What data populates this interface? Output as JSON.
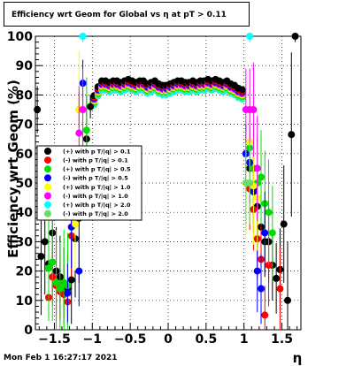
{
  "title": "Efficiency wrt Geom for Global vs   η at pT > 0.11",
  "timestamp": "Mon Feb  1 16:27:17 2021",
  "chart_data": {
    "type": "scatter",
    "title": "Efficiency wrt Geom for Global vs   η at pT > 0.11",
    "xlabel": "η",
    "ylabel": "Efficiency wrt Geom (%)",
    "xlim": [
      -1.75,
      1.75
    ],
    "ylim": [
      0,
      100
    ],
    "x_ticks": [
      -1.5,
      -1,
      -0.5,
      0,
      0.5,
      1,
      1.5
    ],
    "x_tick_labels": [
      "−1.5",
      "−1",
      "−0.5",
      "0",
      "0.5",
      "1",
      "1.5"
    ],
    "y_ticks": [
      0,
      10,
      20,
      30,
      40,
      50,
      60,
      70,
      80,
      90,
      100
    ],
    "y_tick_labels": [
      "0",
      "10",
      "20",
      "30",
      "40",
      "50",
      "60",
      "70",
      "80",
      "90",
      "100"
    ],
    "grid": true,
    "legend_position": "middle-left",
    "series": [
      {
        "name": "(+) with p T/|q| > 0.1",
        "color": "#000000",
        "points": [
          [
            -1.725,
            75,
            8
          ],
          [
            -1.675,
            25,
            20
          ],
          [
            -1.625,
            30,
            18
          ],
          [
            -1.575,
            22.5,
            18
          ],
          [
            -1.525,
            33,
            20
          ],
          [
            -1.475,
            20,
            15
          ],
          [
            -1.425,
            18,
            14
          ],
          [
            -1.375,
            16,
            12
          ],
          [
            -1.325,
            14,
            12
          ],
          [
            -1.275,
            17,
            15
          ],
          [
            -1.225,
            31,
            20
          ],
          [
            -1.175,
            38,
            22
          ],
          [
            -1.075,
            65,
            15
          ],
          [
            -1.025,
            76,
            4
          ],
          [
            1.025,
            60,
            10
          ],
          [
            1.075,
            55,
            12
          ],
          [
            1.125,
            48,
            12
          ],
          [
            1.175,
            42,
            14
          ],
          [
            1.225,
            35,
            14
          ],
          [
            1.275,
            30,
            12
          ],
          [
            1.325,
            30,
            14
          ],
          [
            1.375,
            22,
            12
          ],
          [
            1.425,
            17.5,
            12
          ],
          [
            1.475,
            20.5,
            14
          ],
          [
            1.525,
            36,
            20
          ],
          [
            1.575,
            10,
            20
          ],
          [
            1.625,
            66.5,
            28
          ],
          [
            1.675,
            100,
            2
          ]
        ]
      },
      {
        "name": "(-) with p T/|q| > 0.1",
        "color": "#ff0000",
        "points": [
          [
            -1.575,
            11,
            8
          ],
          [
            -1.525,
            18,
            10
          ],
          [
            -1.475,
            15,
            12
          ],
          [
            -1.425,
            13,
            10
          ],
          [
            -1.375,
            12,
            10
          ],
          [
            -1.325,
            9.5,
            8
          ],
          [
            -1.275,
            32,
            14
          ],
          [
            -1.225,
            36,
            16
          ],
          [
            -1.175,
            75,
            6
          ],
          [
            1.075,
            48,
            14
          ],
          [
            1.125,
            41,
            14
          ],
          [
            1.175,
            31,
            14
          ],
          [
            1.225,
            24,
            14
          ],
          [
            1.275,
            5,
            10
          ],
          [
            1.325,
            22,
            14
          ],
          [
            1.475,
            14,
            14
          ]
        ]
      },
      {
        "name": "(+) with p T/|q| > 0.5",
        "color": "#00dd00",
        "points": [
          [
            -1.575,
            21,
            18
          ],
          [
            -1.525,
            23,
            20
          ],
          [
            -1.475,
            16,
            18
          ],
          [
            -1.425,
            14,
            16
          ],
          [
            -1.375,
            16,
            18
          ],
          [
            -1.325,
            15,
            18
          ],
          [
            -1.075,
            68,
            18
          ],
          [
            1.025,
            50,
            16
          ],
          [
            1.075,
            62,
            16
          ],
          [
            1.125,
            55,
            16
          ],
          [
            1.175,
            50,
            16
          ],
          [
            1.225,
            52,
            16
          ],
          [
            1.275,
            43,
            18
          ],
          [
            1.325,
            40,
            18
          ],
          [
            1.375,
            33,
            16
          ]
        ]
      },
      {
        "name": "(-) with p T/|q| > 0.5",
        "color": "#0000ff",
        "points": [
          [
            -1.325,
            12.5,
            10
          ],
          [
            -1.275,
            35,
            14
          ],
          [
            -1.175,
            20,
            12
          ],
          [
            -1.125,
            84,
            8
          ],
          [
            1.025,
            60,
            10
          ],
          [
            1.075,
            57,
            12
          ],
          [
            1.125,
            47,
            14
          ],
          [
            1.175,
            20,
            14
          ],
          [
            1.225,
            14,
            12
          ],
          [
            1.275,
            33,
            14
          ]
        ]
      },
      {
        "name": "(+) with p T/|q| > 1.0",
        "color": "#ffff00",
        "points": [
          [
            -1.225,
            36,
            16
          ],
          [
            -1.175,
            75,
            20
          ],
          [
            1.025,
            50,
            18
          ],
          [
            1.075,
            64,
            18
          ],
          [
            1.125,
            49,
            20
          ],
          [
            1.175,
            45,
            18
          ]
        ]
      },
      {
        "name": "(-) with p T/|q| > 1.0",
        "color": "#ff00ff",
        "points": [
          [
            -1.175,
            67,
            16
          ],
          [
            -1.125,
            75,
            14
          ],
          [
            1.025,
            75,
            14
          ],
          [
            1.075,
            75,
            14
          ],
          [
            1.125,
            75,
            16
          ],
          [
            1.175,
            55,
            18
          ]
        ]
      },
      {
        "name": "(+) with p T/|q| > 2.0",
        "color": "#00ffff",
        "points": [
          [
            -1.125,
            100,
            2
          ],
          [
            1.075,
            100,
            2
          ]
        ]
      },
      {
        "name": "(-) with p T/|q| > 2.0",
        "color": "#66dd66",
        "points": [
          [
            1.025,
            50,
            14
          ],
          [
            1.075,
            50,
            14
          ]
        ]
      }
    ],
    "plateau": {
      "x": [
        -0.975,
        -0.925,
        -0.875,
        -0.825,
        -0.775,
        -0.725,
        -0.675,
        -0.625,
        -0.575,
        -0.525,
        -0.475,
        -0.425,
        -0.375,
        -0.325,
        -0.275,
        -0.225,
        -0.175,
        -0.125,
        -0.075,
        -0.025,
        0.025,
        0.075,
        0.125,
        0.175,
        0.225,
        0.275,
        0.325,
        0.375,
        0.425,
        0.475,
        0.525,
        0.575,
        0.625,
        0.675,
        0.725,
        0.775,
        0.825,
        0.875,
        0.925,
        0.975
      ],
      "y": [
        77,
        80,
        82,
        82,
        81.5,
        82,
        82,
        81.5,
        82,
        82.5,
        82,
        81.5,
        82,
        82,
        81,
        81.5,
        82,
        81,
        80.5,
        80.5,
        81,
        81.5,
        82,
        82,
        81.5,
        81.5,
        82,
        81.5,
        82,
        82,
        82.5,
        82,
        82.5,
        82,
        81.5,
        82,
        81,
        80.5,
        79.5,
        79
      ]
    }
  },
  "legend": [
    {
      "label": "(+) with p T/|q| > 0.1",
      "color": "#000000"
    },
    {
      "label": "(-) with p T/|q| > 0.1",
      "color": "#ff0000"
    },
    {
      "label": "(+) with p T/|q| > 0.5",
      "color": "#00dd00"
    },
    {
      "label": "(-) with p T/|q| > 0.5",
      "color": "#0000ff"
    },
    {
      "label": "(+) with p T/|q| > 1.0",
      "color": "#ffff00"
    },
    {
      "label": "(-) with p T/|q| > 1.0",
      "color": "#ff00ff"
    },
    {
      "label": "(+) with p T/|q| > 2.0",
      "color": "#00ffff"
    },
    {
      "label": "(-) with p T/|q| > 2.0",
      "color": "#66dd66"
    }
  ]
}
